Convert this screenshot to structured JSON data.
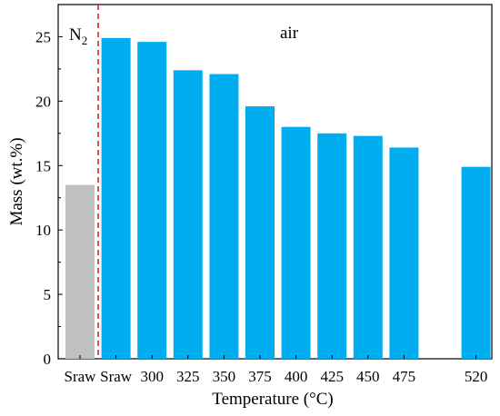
{
  "chart_data": {
    "type": "bar",
    "xlabel": "Temperature (°C)",
    "ylabel": "Mass (wt.%)",
    "ylim": [
      0,
      27.5
    ],
    "yticks": [
      0,
      5,
      10,
      15,
      20,
      25
    ],
    "grid": false,
    "annotations": {
      "n2_main": "N",
      "n2_sub": "2",
      "air": "air"
    },
    "bars": [
      {
        "label": "Sraw",
        "slot": 0,
        "value": 13.5,
        "atmosphere": "N2",
        "color": "#c0c0c0"
      },
      {
        "label": "Sraw",
        "slot": 1,
        "value": 24.9,
        "atmosphere": "air",
        "color": "#00aeef"
      },
      {
        "label": "300",
        "slot": 2,
        "value": 24.6,
        "atmosphere": "air",
        "color": "#00aeef"
      },
      {
        "label": "325",
        "slot": 3,
        "value": 22.4,
        "atmosphere": "air",
        "color": "#00aeef"
      },
      {
        "label": "350",
        "slot": 4,
        "value": 22.1,
        "atmosphere": "air",
        "color": "#00aeef"
      },
      {
        "label": "375",
        "slot": 5,
        "value": 19.6,
        "atmosphere": "air",
        "color": "#00aeef"
      },
      {
        "label": "400",
        "slot": 6,
        "value": 18.0,
        "atmosphere": "air",
        "color": "#00aeef"
      },
      {
        "label": "425",
        "slot": 7,
        "value": 17.5,
        "atmosphere": "air",
        "color": "#00aeef"
      },
      {
        "label": "450",
        "slot": 8,
        "value": 17.3,
        "atmosphere": "air",
        "color": "#00aeef"
      },
      {
        "label": "475",
        "slot": 9,
        "value": 16.4,
        "atmosphere": "air",
        "color": "#00aeef"
      },
      {
        "label": "520",
        "slot": 11,
        "value": 14.9,
        "atmosphere": "air",
        "color": "#00aeef"
      }
    ],
    "divider_color": "#e8202a"
  }
}
